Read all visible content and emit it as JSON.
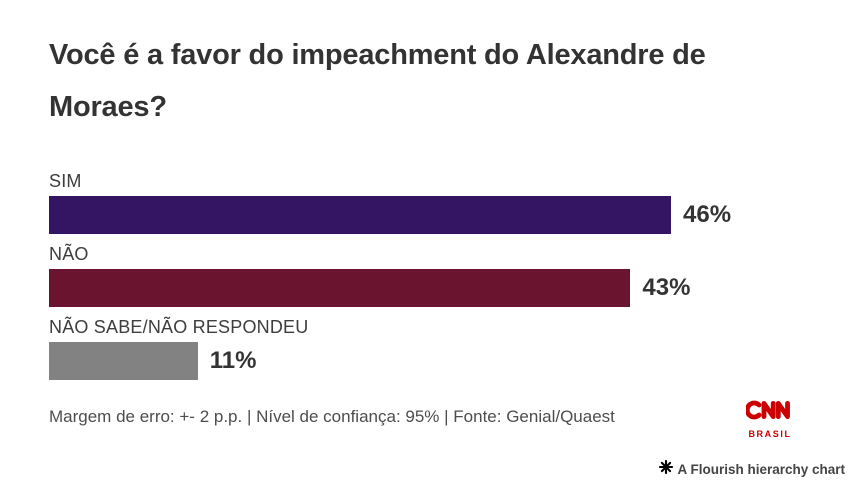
{
  "title": "Você é a favor do impeachment do Alexandre de Moraes?",
  "chart_data": {
    "type": "bar",
    "orientation": "horizontal",
    "title": "Você é a favor do impeachment do Alexandre de Moraes?",
    "categories": [
      "SIM",
      "NÃO",
      "NÃO SABE/NÃO RESPONDEU"
    ],
    "values": [
      46,
      43,
      11
    ],
    "value_labels": [
      "46%",
      "43%",
      "11%"
    ],
    "value_suffix": "%",
    "bar_colors": [
      "#341563",
      "#6b1430",
      "#828282"
    ],
    "xlim": [
      0,
      46
    ],
    "grid": "off",
    "legend": "none",
    "value_label_position": "end-of-bar"
  },
  "footer": {
    "note": "Margem de erro: +- 2 p.p. | Nível de confiança: 95% | Fonte: Genial/Quaest"
  },
  "branding": {
    "network": "CNN",
    "region": "BRASIL",
    "color": "#cc0000"
  },
  "attribution": {
    "icon": "flourish-asterisk",
    "text": "A Flourish hierarchy chart"
  }
}
